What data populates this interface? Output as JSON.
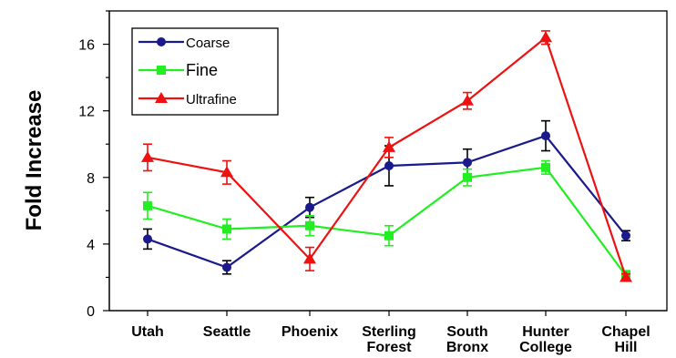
{
  "chart_data": {
    "type": "line",
    "title": "",
    "xlabel": "",
    "ylabel": "Fold Increase",
    "ylim": [
      0,
      18
    ],
    "yticks": [
      "0",
      "4",
      "8",
      "12",
      "16"
    ],
    "grid": false,
    "legend_position": "top-left",
    "categories": [
      [
        "Utah"
      ],
      [
        "Seattle"
      ],
      [
        "Phoenix"
      ],
      [
        "Sterling",
        "Forest"
      ],
      [
        "South",
        "Bronx"
      ],
      [
        "Hunter",
        "College"
      ],
      [
        "Chapel",
        "Hill"
      ]
    ],
    "series": [
      {
        "name": "Coarse",
        "color": "#1a1a8c",
        "marker": "circle",
        "values": [
          4.3,
          2.6,
          6.2,
          8.7,
          8.9,
          10.5,
          4.5
        ],
        "errors": [
          0.6,
          0.4,
          0.6,
          1.2,
          0.8,
          0.9,
          0.3
        ]
      },
      {
        "name": "Fine",
        "color": "#22ee22",
        "marker": "square",
        "values": [
          6.3,
          4.9,
          5.1,
          4.5,
          8.0,
          8.6,
          2.1
        ],
        "errors": [
          0.8,
          0.6,
          0.6,
          0.6,
          0.5,
          0.4,
          0.3
        ]
      },
      {
        "name": "Ultrafine",
        "color": "#ee1111",
        "marker": "triangle",
        "values": [
          9.2,
          8.3,
          3.1,
          9.8,
          12.6,
          16.4,
          2.0
        ],
        "errors": [
          0.8,
          0.7,
          0.7,
          0.6,
          0.5,
          0.4,
          0.2
        ]
      }
    ]
  }
}
